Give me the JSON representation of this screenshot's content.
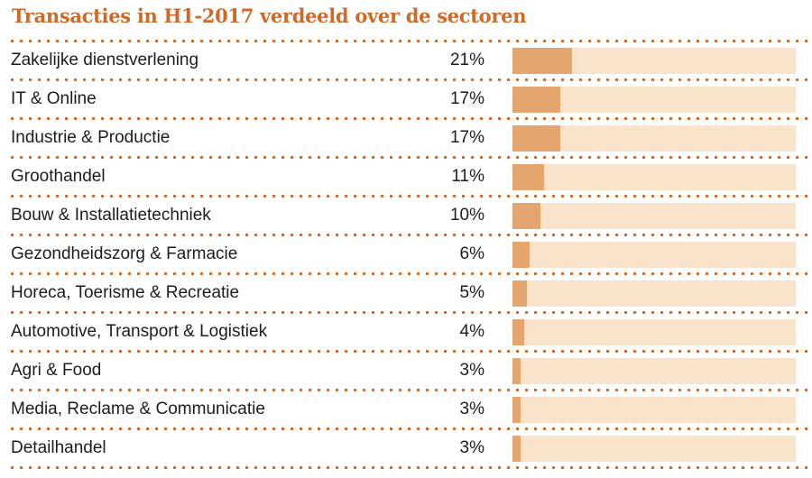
{
  "title": "Transacties in H1-2017 verdeeld over de sectoren",
  "colors": {
    "title": "#cd6a28",
    "bar_fill": "#e5a56e",
    "bar_track": "#f9e3cb",
    "dot_core": "#bc5d20",
    "dot_halo": "#dd9055",
    "label_text": "#1d1d1b",
    "background": "#ffffff"
  },
  "chart_data": {
    "type": "bar",
    "orientation": "horizontal",
    "title": "Transacties in H1-2017 verdeeld over de sectoren",
    "categories": [
      "Zakelijke dienstverlening",
      "IT & Online",
      "Industrie & Productie",
      "Groothandel",
      "Bouw & Installatietechniek",
      "Gezondheidszorg & Farmacie",
      "Horeca, Toerisme & Recreatie",
      "Automotive, Transport & Logistiek",
      "Agri & Food",
      "Media, Reclame & Communicatie",
      "Detailhandel"
    ],
    "values": [
      21,
      17,
      17,
      11,
      10,
      6,
      5,
      4,
      3,
      3,
      3
    ],
    "value_suffix": "%",
    "value_labels": [
      "21%",
      "17%",
      "17%",
      "11%",
      "10%",
      "6%",
      "5%",
      "4%",
      "3%",
      "3%",
      "3%"
    ],
    "xlim": [
      0,
      100
    ],
    "xlabel": "",
    "ylabel": "",
    "grid": false,
    "legend": false,
    "separator_style": "orange-dotted-line"
  }
}
